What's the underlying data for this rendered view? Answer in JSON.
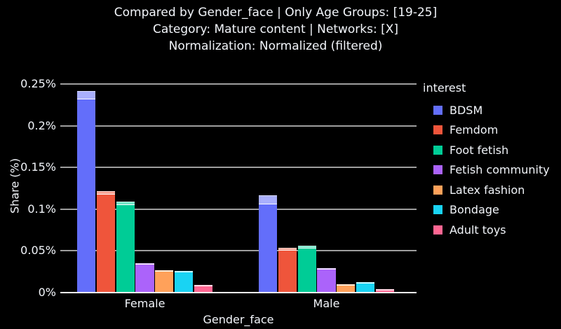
{
  "header": {
    "line1": "Compared by Gender_face | Only Age Groups: [19-25]",
    "line2": "Category: Mature content | Networks: [X]",
    "line3": "Normalization: Normalized (filtered)"
  },
  "chart_data": {
    "type": "bar",
    "title": "Compared by Gender_face | Only Age Groups: [19-25] / Category: Mature content | Networks: [X] / Normalization: Normalized (filtered)",
    "xlabel": "Gender_face",
    "ylabel": "Share (%)",
    "categories": [
      "Female",
      "Male"
    ],
    "series": [
      {
        "name": "BDSM",
        "color": "#636EFA",
        "values": [
          0.242,
          0.117
        ],
        "solid_values": [
          0.232,
          0.106
        ]
      },
      {
        "name": "Femdom",
        "color": "#EF553B",
        "values": [
          0.122,
          0.054
        ],
        "solid_values": [
          0.118,
          0.051
        ]
      },
      {
        "name": "Foot fetish",
        "color": "#00CC96",
        "values": [
          0.109,
          0.056
        ],
        "solid_values": [
          0.105,
          0.053
        ]
      },
      {
        "name": "Fetish community",
        "color": "#AB63FA",
        "values": [
          0.035,
          0.029
        ],
        "solid_values": [
          0.033,
          0.0275
        ]
      },
      {
        "name": "Latex fashion",
        "color": "#FFA15A",
        "values": [
          0.027,
          0.01
        ],
        "solid_values": [
          0.0255,
          0.009
        ]
      },
      {
        "name": "Bondage",
        "color": "#19D3F3",
        "values": [
          0.026,
          0.013
        ],
        "solid_values": [
          0.0245,
          0.0122
        ]
      },
      {
        "name": "Adult toys",
        "color": "#FF6692",
        "values": [
          0.009,
          0.004
        ],
        "solid_values": [
          0.0085,
          0.0035
        ]
      }
    ],
    "ylim": [
      0,
      0.2584
    ],
    "yticks": [
      0,
      0.05,
      0.1,
      0.15,
      0.2,
      0.25
    ],
    "ytick_labels": [
      "0%",
      "0.05%",
      "0.1%",
      "0.15%",
      "0.2%",
      "0.25%"
    ],
    "legend_title": "interest",
    "legend_position": "right",
    "grid": true
  },
  "colors": {
    "background": "#000000",
    "text": "#f2f5fa",
    "gridline": "rgba(255,255,255,0.62)",
    "axis_line": "#ffffff"
  }
}
